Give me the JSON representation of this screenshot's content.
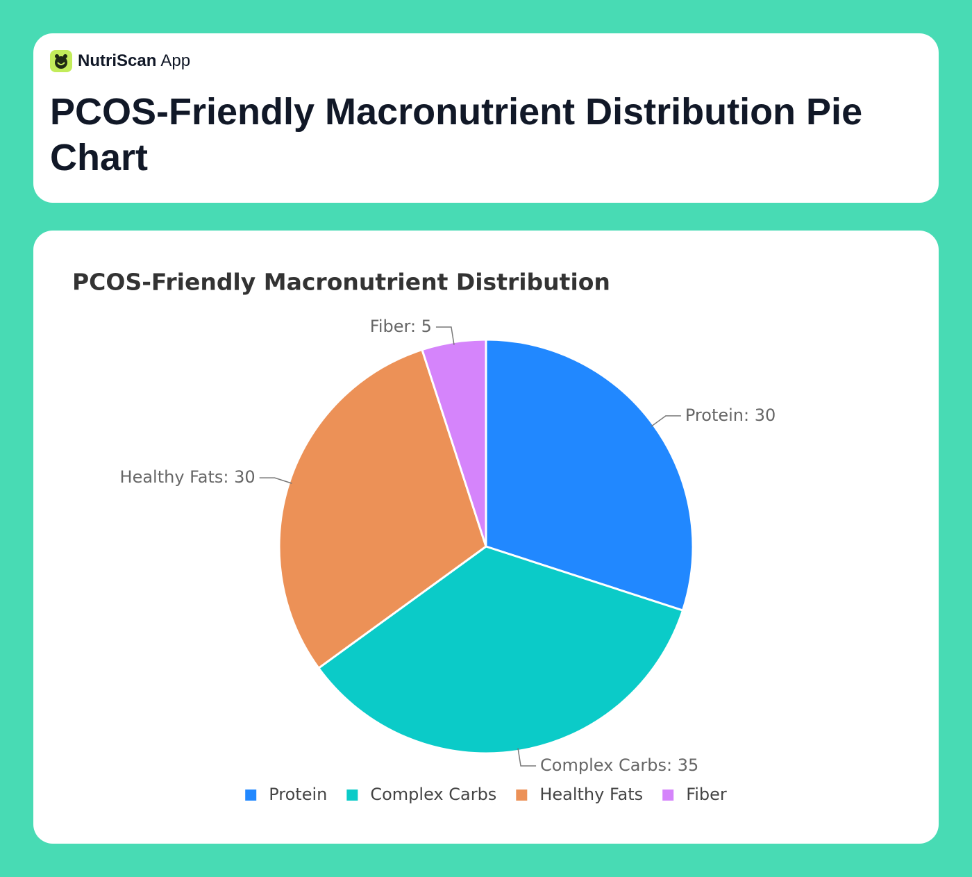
{
  "header": {
    "brand": "NutriScan",
    "brand_suffix": "App",
    "title": "PCOS-Friendly Macronutrient Distribution Pie Chart"
  },
  "chart_data": {
    "type": "pie",
    "title": "PCOS-Friendly Macronutrient Distribution",
    "categories": [
      "Protein",
      "Complex Carbs",
      "Healthy Fats",
      "Fiber"
    ],
    "values": [
      30,
      35,
      30,
      5
    ],
    "value_labels": [
      "Protein: 30",
      "Complex Carbs: 35",
      "Healthy Fats: 30",
      "Fiber: 5"
    ],
    "colors": [
      "#2188ff",
      "#0bcbc8",
      "#ec9157",
      "#d584fb"
    ],
    "legend": "bottom"
  }
}
